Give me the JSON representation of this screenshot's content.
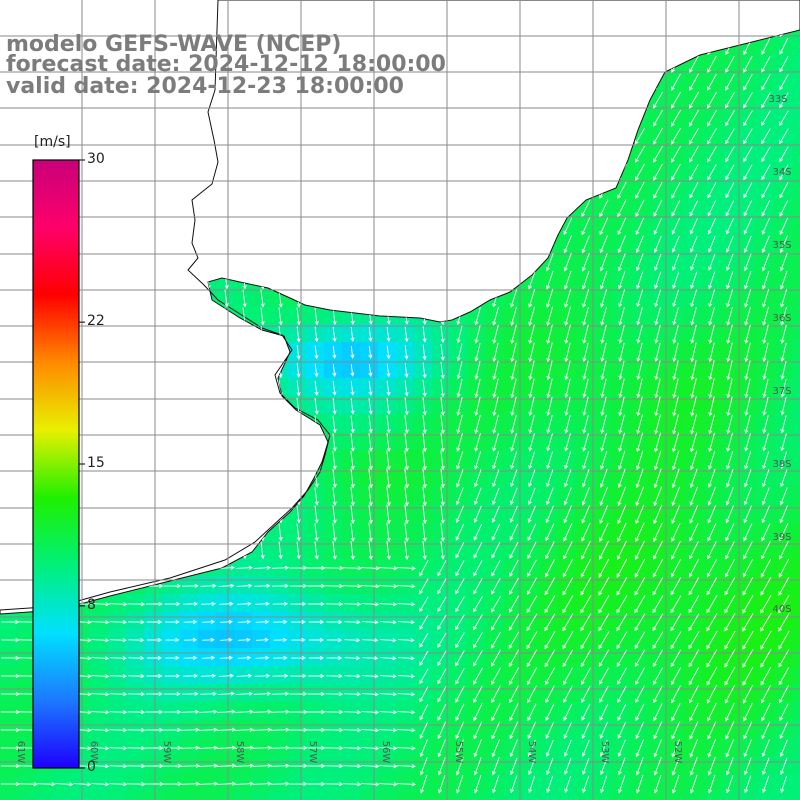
{
  "title": {
    "line1": "modelo GEFS-WAVE (NCEP)",
    "line2": "forecast date: 2024-12-12 18:00:00",
    "line3": "valid date: 2024-12-23 18:00:00"
  },
  "colorbar": {
    "unit": "[m/s]",
    "ticks": [
      {
        "value": 30,
        "label": "30"
      },
      {
        "value": 22,
        "label": "22"
      },
      {
        "value": 15,
        "label": "15"
      },
      {
        "value": 8,
        "label": "8"
      },
      {
        "value": 0,
        "label": "0"
      }
    ],
    "colors": [
      "#1d00ff",
      "#1c79ff",
      "#00e0ff",
      "#00f07a",
      "#1ef000",
      "#e8f000",
      "#ff8a00",
      "#ff0000",
      "#ff006a",
      "#c8007a"
    ]
  },
  "map": {
    "lat_labels": [
      "33S",
      "34S",
      "35S",
      "36S",
      "37S",
      "38S",
      "39S",
      "40S"
    ],
    "lon_labels": [
      "61W",
      "60W",
      "59W",
      "58W",
      "57W",
      "56W",
      "55W",
      "54W",
      "53W",
      "52W"
    ],
    "land_color": "#ffffff",
    "grid_color": "#8a8a8a",
    "arrow_color": "#ffffff"
  }
}
